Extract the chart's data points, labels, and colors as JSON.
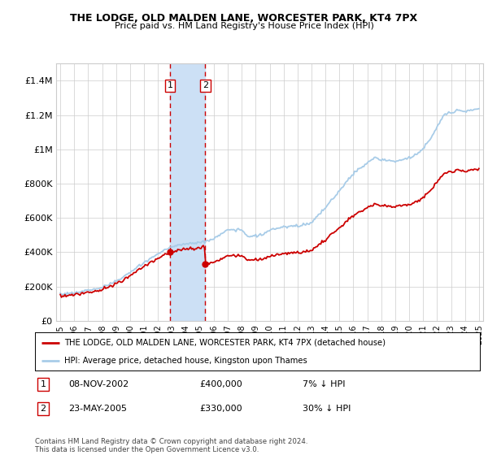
{
  "title": "THE LODGE, OLD MALDEN LANE, WORCESTER PARK, KT4 7PX",
  "subtitle": "Price paid vs. HM Land Registry's House Price Index (HPI)",
  "ylim": [
    0,
    1500000
  ],
  "yticks": [
    0,
    200000,
    400000,
    600000,
    800000,
    1000000,
    1200000,
    1400000
  ],
  "ytick_labels": [
    "£0",
    "£200K",
    "£400K",
    "£600K",
    "£800K",
    "£1M",
    "£1.2M",
    "£1.4M"
  ],
  "hpi_color": "#a8cce8",
  "property_color": "#cc0000",
  "transaction1_date": 2002.86,
  "transaction1_price": 400000,
  "transaction2_date": 2005.39,
  "transaction2_price": 330000,
  "shade_color": "#cce0f5",
  "vline_color": "#cc0000",
  "legend_property": "THE LODGE, OLD MALDEN LANE, WORCESTER PARK, KT4 7PX (detached house)",
  "legend_hpi": "HPI: Average price, detached house, Kingston upon Thames",
  "table_rows": [
    {
      "num": "1",
      "date": "08-NOV-2002",
      "price": "£400,000",
      "hpi": "7% ↓ HPI"
    },
    {
      "num": "2",
      "date": "23-MAY-2005",
      "price": "£330,000",
      "hpi": "30% ↓ HPI"
    }
  ],
  "footer": "Contains HM Land Registry data © Crown copyright and database right 2024.\nThis data is licensed under the Open Government Licence v3.0.",
  "background_color": "#ffffff",
  "grid_color": "#cccccc",
  "xlim_left": 1994.7,
  "xlim_right": 2025.3
}
